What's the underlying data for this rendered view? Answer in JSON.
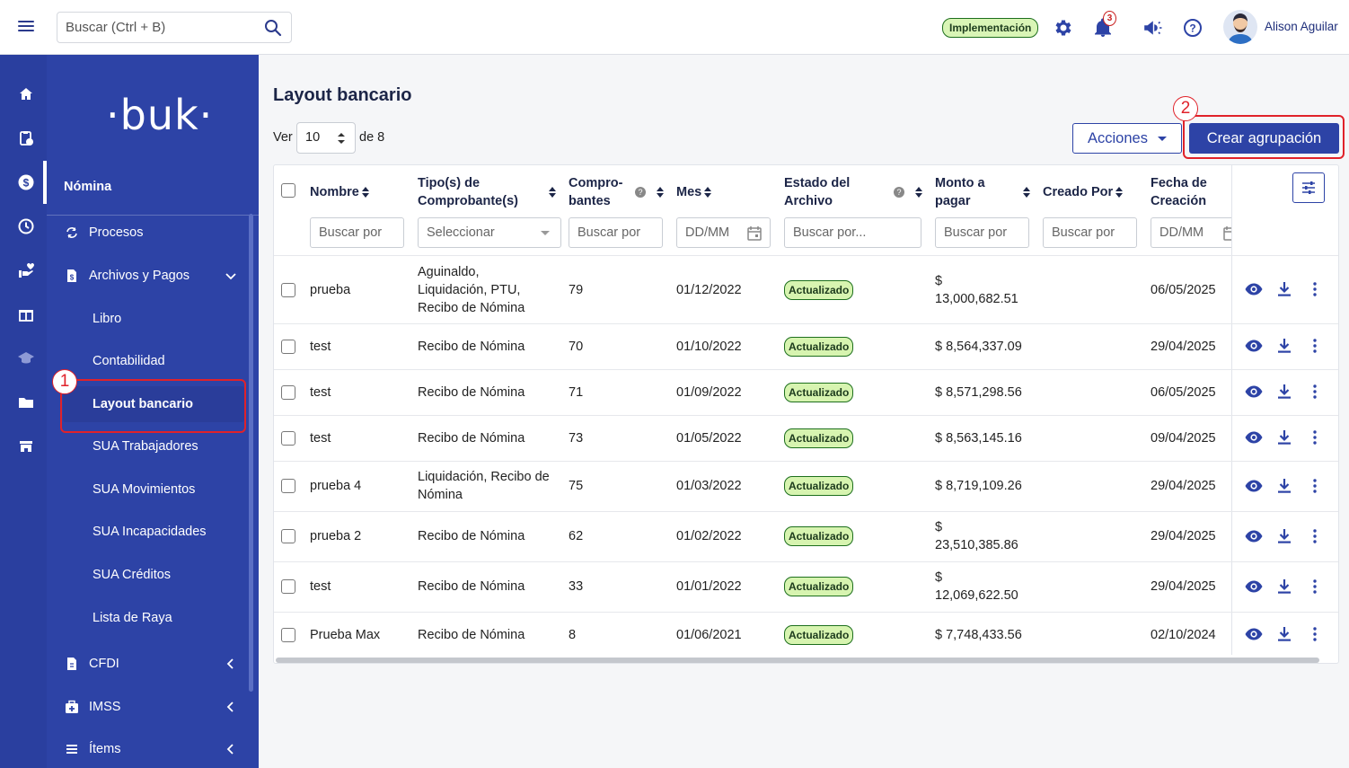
{
  "topbar": {
    "search_placeholder": "Buscar (Ctrl + B)",
    "env_badge": "Implementación",
    "notification_count": "3",
    "user_name": "Alison Aguilar"
  },
  "sidebar": {
    "logo": "·buk·",
    "section_title": "Nómina",
    "items": [
      {
        "label": "Procesos",
        "icon": "sync-icon"
      },
      {
        "label": "Archivos y Pagos",
        "icon": "file-dollar-icon"
      },
      {
        "label": "Libro"
      },
      {
        "label": "Contabilidad"
      },
      {
        "label": "Layout bancario"
      },
      {
        "label": "SUA Trabajadores"
      },
      {
        "label": "SUA Movimientos"
      },
      {
        "label": "SUA Incapacidades"
      },
      {
        "label": "SUA Créditos"
      },
      {
        "label": "Lista de Raya"
      },
      {
        "label": "CFDI",
        "icon": "file-icon"
      },
      {
        "label": "IMSS",
        "icon": "medical-bag-icon"
      },
      {
        "label": "Ítems",
        "icon": "list-icon"
      }
    ]
  },
  "annotations": {
    "step1": "1",
    "step2": "2"
  },
  "page": {
    "title": "Layout bancario",
    "show_label": "Ver",
    "page_size": "10",
    "of_label": "de 8",
    "actions_button": "Acciones",
    "create_button": "Crear agrupación"
  },
  "table": {
    "headers": {
      "nombre": "Nombre",
      "tipo_1": "Tipo(s) de",
      "tipo_2": "Comprobante(s)",
      "comp_1": "Compro-",
      "comp_2": "bantes",
      "mes": "Mes",
      "estado_1": "Estado del",
      "estado_2": "Archivo",
      "monto_1": "Monto a",
      "monto_2": "pagar",
      "creado": "Creado Por",
      "fecha_1": "Fecha de",
      "fecha_2": "Creación"
    },
    "filters": {
      "nombre": "Buscar por",
      "tipo": "Seleccionar",
      "comp": "Buscar por",
      "mes": "DD/MM",
      "estado": "Buscar por...",
      "monto": "Buscar por",
      "creado": "Buscar por",
      "fecha": "DD/MM"
    },
    "rows": [
      {
        "nombre": "prueba",
        "tipo_lines": [
          "Aguinaldo,",
          "Liquidación, PTU,",
          "Recibo de Nómina"
        ],
        "comprobantes": "79",
        "mes": "01/12/2022",
        "estado": "Actualizado",
        "monto_lines": [
          "$",
          "13,000,682.51"
        ],
        "creado_por": "",
        "fecha": "06/05/2025"
      },
      {
        "nombre": "test",
        "tipo_lines": [
          "Recibo de Nómina"
        ],
        "comprobantes": "70",
        "mes": "01/10/2022",
        "estado": "Actualizado",
        "monto_lines": [
          "$ 8,564,337.09"
        ],
        "creado_por": "",
        "fecha": "29/04/2025"
      },
      {
        "nombre": "test",
        "tipo_lines": [
          "Recibo de Nómina"
        ],
        "comprobantes": "71",
        "mes": "01/09/2022",
        "estado": "Actualizado",
        "monto_lines": [
          "$ 8,571,298.56"
        ],
        "creado_por": "",
        "fecha": "06/05/2025"
      },
      {
        "nombre": "test",
        "tipo_lines": [
          "Recibo de Nómina"
        ],
        "comprobantes": "73",
        "mes": "01/05/2022",
        "estado": "Actualizado",
        "monto_lines": [
          "$ 8,563,145.16"
        ],
        "creado_por": "",
        "fecha": "09/04/2025"
      },
      {
        "nombre": "prueba 4",
        "tipo_lines": [
          "Liquidación, Recibo de",
          "Nómina"
        ],
        "comprobantes": "75",
        "mes": "01/03/2022",
        "estado": "Actualizado",
        "monto_lines": [
          "$ 8,719,109.26"
        ],
        "creado_por": "",
        "fecha": "29/04/2025"
      },
      {
        "nombre": "prueba 2",
        "tipo_lines": [
          "Recibo de Nómina"
        ],
        "comprobantes": "62",
        "mes": "01/02/2022",
        "estado": "Actualizado",
        "monto_lines": [
          "$",
          "23,510,385.86"
        ],
        "creado_por": "",
        "fecha": "29/04/2025"
      },
      {
        "nombre": "test",
        "tipo_lines": [
          "Recibo de Nómina"
        ],
        "comprobantes": "33",
        "mes": "01/01/2022",
        "estado": "Actualizado",
        "monto_lines": [
          "$",
          "12,069,622.50"
        ],
        "creado_por": "",
        "fecha": "29/04/2025"
      },
      {
        "nombre": "Prueba Max",
        "tipo_lines": [
          "Recibo de Nómina"
        ],
        "comprobantes": "8",
        "mes": "01/06/2021",
        "estado": "Actualizado",
        "monto_lines": [
          "$ 7,748,433.56"
        ],
        "creado_por": "",
        "fecha": "02/10/2024"
      }
    ]
  },
  "colors": {
    "brand": "#2d43a6",
    "annotation": "#e0222a",
    "status_bg": "#d7f4b0"
  }
}
